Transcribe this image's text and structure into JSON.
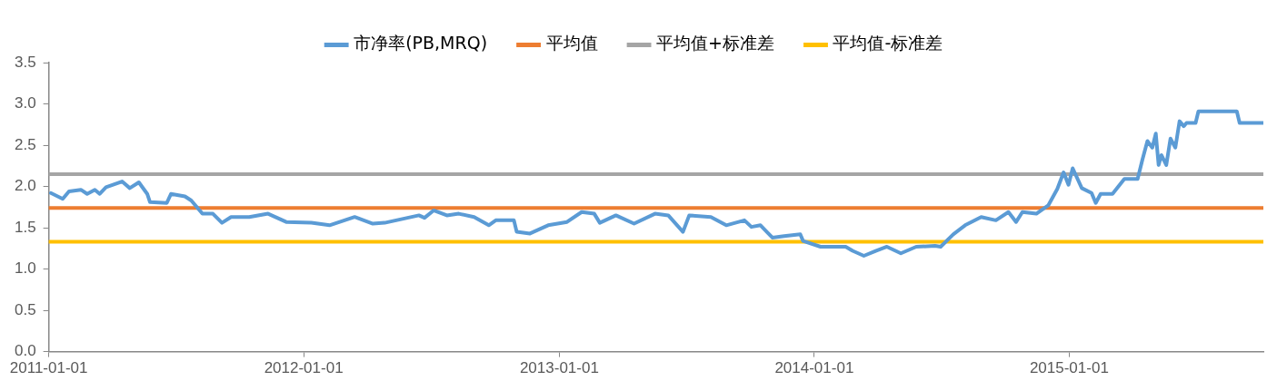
{
  "chart_data": {
    "type": "line",
    "legend": "top",
    "grid": false,
    "marker": "none",
    "line_style": "solid",
    "xlim": [
      "2011-01-01",
      "2015-10-06"
    ],
    "xticks": [
      "2011-01-01",
      "2012-01-01",
      "2013-01-01",
      "2014-01-01",
      "2015-01-01"
    ],
    "ylim": [
      0,
      3.5
    ],
    "yticks": [
      {
        "value": 0,
        "label": "0.0"
      },
      {
        "value": 0.5,
        "label": "0.5"
      },
      {
        "value": 1,
        "label": "1.0"
      },
      {
        "value": 1.5,
        "label": "1.5"
      },
      {
        "value": 2,
        "label": "2.0"
      },
      {
        "value": 2.5,
        "label": "2.5"
      },
      {
        "value": 3,
        "label": "3.0"
      },
      {
        "value": 3.5,
        "label": "3.5"
      }
    ],
    "series": [
      {
        "name": "市净率(PB,MRQ)",
        "color": "#5b9bd5",
        "x": [
          "2011-01-04",
          "2011-01-21",
          "2011-01-30",
          "2011-02-16",
          "2011-02-25",
          "2011-03-08",
          "2011-03-15",
          "2011-03-24",
          "2011-04-16",
          "2011-04-27",
          "2011-05-10",
          "2011-05-22",
          "2011-05-26",
          "2011-06-19",
          "2011-06-25",
          "2011-07-15",
          "2011-07-24",
          "2011-08-09",
          "2011-08-24",
          "2011-09-06",
          "2011-09-19",
          "2011-10-15",
          "2011-11-11",
          "2011-12-07",
          "2012-01-12",
          "2012-02-07",
          "2012-03-14",
          "2012-04-09",
          "2012-04-26",
          "2012-06-14",
          "2012-06-22",
          "2012-07-05",
          "2012-07-24",
          "2012-08-10",
          "2012-09-01",
          "2012-09-22",
          "2012-10-02",
          "2012-10-28",
          "2012-11-01",
          "2012-11-20",
          "2012-12-16",
          "2013-01-12",
          "2013-02-02",
          "2013-02-20",
          "2013-02-28",
          "2013-03-23",
          "2013-04-18",
          "2013-05-18",
          "2013-06-06",
          "2013-06-27",
          "2013-07-06",
          "2013-08-06",
          "2013-08-28",
          "2013-09-23",
          "2013-10-03",
          "2013-10-16",
          "2013-11-02",
          "2013-11-19",
          "2013-12-12",
          "2013-12-16",
          "2014-01-10",
          "2014-02-02",
          "2014-02-15",
          "2014-02-25",
          "2014-03-13",
          "2014-03-30",
          "2014-04-15",
          "2014-05-05",
          "2014-05-27",
          "2014-06-23",
          "2014-07-01",
          "2014-07-19",
          "2014-08-05",
          "2014-08-28",
          "2014-09-18",
          "2014-10-06",
          "2014-10-17",
          "2014-10-26",
          "2014-11-15",
          "2014-12-02",
          "2014-12-15",
          "2014-12-24",
          "2014-12-31",
          "2015-01-06",
          "2015-01-19",
          "2015-02-02",
          "2015-02-08",
          "2015-02-15",
          "2015-03-04",
          "2015-03-21",
          "2015-04-09",
          "2015-04-16",
          "2015-04-23",
          "2015-04-30",
          "2015-05-05",
          "2015-05-09",
          "2015-05-13",
          "2015-05-20",
          "2015-05-26",
          "2015-06-02",
          "2015-06-08",
          "2015-06-14",
          "2015-06-18",
          "2015-07-01",
          "2015-07-05",
          "2015-08-29",
          "2015-09-02",
          "2015-10-06"
        ],
        "values": [
          1.92,
          1.85,
          1.94,
          1.96,
          1.91,
          1.96,
          1.91,
          1.99,
          2.06,
          1.98,
          2.05,
          1.91,
          1.81,
          1.8,
          1.91,
          1.88,
          1.83,
          1.67,
          1.67,
          1.56,
          1.63,
          1.63,
          1.67,
          1.57,
          1.56,
          1.53,
          1.63,
          1.55,
          1.56,
          1.65,
          1.62,
          1.71,
          1.65,
          1.67,
          1.63,
          1.53,
          1.59,
          1.59,
          1.45,
          1.43,
          1.53,
          1.57,
          1.69,
          1.67,
          1.56,
          1.65,
          1.55,
          1.67,
          1.65,
          1.45,
          1.65,
          1.63,
          1.53,
          1.59,
          1.51,
          1.53,
          1.38,
          1.4,
          1.42,
          1.34,
          1.27,
          1.27,
          1.27,
          1.22,
          1.16,
          1.22,
          1.27,
          1.19,
          1.27,
          1.28,
          1.27,
          1.42,
          1.53,
          1.63,
          1.59,
          1.69,
          1.57,
          1.69,
          1.67,
          1.77,
          1.97,
          2.17,
          2.02,
          2.22,
          1.98,
          1.92,
          1.8,
          1.91,
          1.91,
          2.09,
          2.09,
          2.33,
          2.55,
          2.47,
          2.64,
          2.26,
          2.38,
          2.26,
          2.58,
          2.47,
          2.79,
          2.73,
          2.77,
          2.77,
          2.91,
          2.91,
          2.77,
          2.77
        ]
      },
      {
        "name": "平均值",
        "color": "#ed7d31",
        "x": [
          "2011-01-01",
          "2015-10-06"
        ],
        "values": [
          1.74,
          1.74
        ]
      },
      {
        "name": "平均值+标准差",
        "color": "#a5a5a5",
        "x": [
          "2011-01-01",
          "2015-10-06"
        ],
        "values": [
          2.15,
          2.15
        ]
      },
      {
        "name": "平均值-标准差",
        "color": "#ffc000",
        "x": [
          "2011-01-01",
          "2015-10-06"
        ],
        "values": [
          1.33,
          1.33
        ]
      }
    ]
  }
}
